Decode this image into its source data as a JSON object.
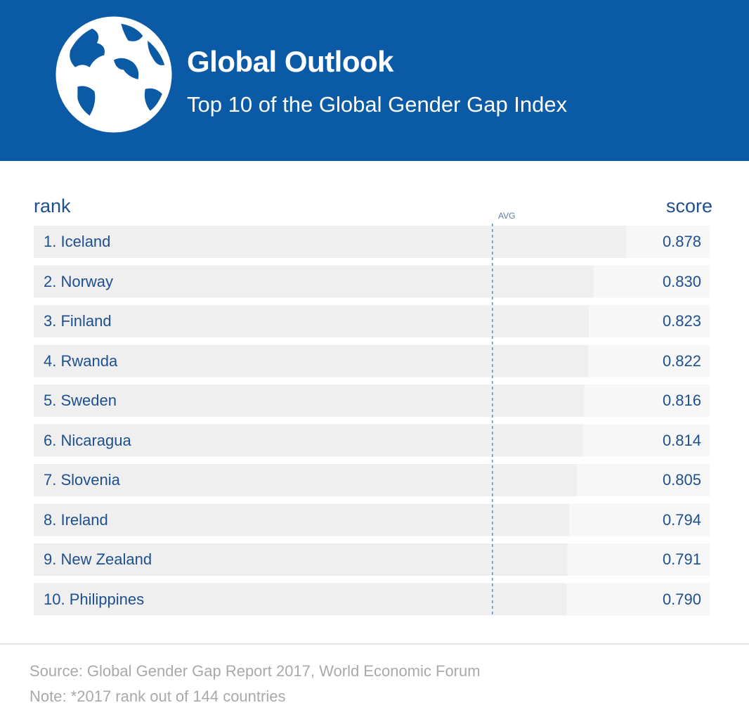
{
  "header": {
    "title": "Global Outlook",
    "subtitle": "Top 10 of the Global Gender Gap Index",
    "background_color": "#0b5aa6",
    "globe_icon": "globe-icon"
  },
  "columns": {
    "rank_label": "rank",
    "score_label": "score"
  },
  "chart_data": {
    "type": "bar",
    "orientation": "horizontal",
    "categories": [
      "1. Iceland",
      "2. Norway",
      "3. Finland",
      "4. Rwanda",
      "5. Sweden",
      "6. Nicaragua",
      "7. Slovenia",
      "8. Ireland",
      "9. New Zealand",
      "10. Philippines"
    ],
    "values": [
      0.878,
      0.83,
      0.823,
      0.822,
      0.816,
      0.814,
      0.805,
      0.794,
      0.791,
      0.79
    ],
    "value_labels": [
      "0.878",
      "0.830",
      "0.823",
      "0.822",
      "0.816",
      "0.814",
      "0.805",
      "0.794",
      "0.791",
      "0.790"
    ],
    "reference_line": {
      "label": "AVG",
      "value": 0.68
    },
    "bar_color": "#efefef",
    "track_color": "#f7f7f7",
    "text_color": "#1e4f8f",
    "avg_line_color": "#5a8ac6"
  },
  "footer": {
    "source": "Source: Global Gender Gap Report 2017, World Economic Forum",
    "note": "Note: *2017 rank out of 144 countries"
  }
}
